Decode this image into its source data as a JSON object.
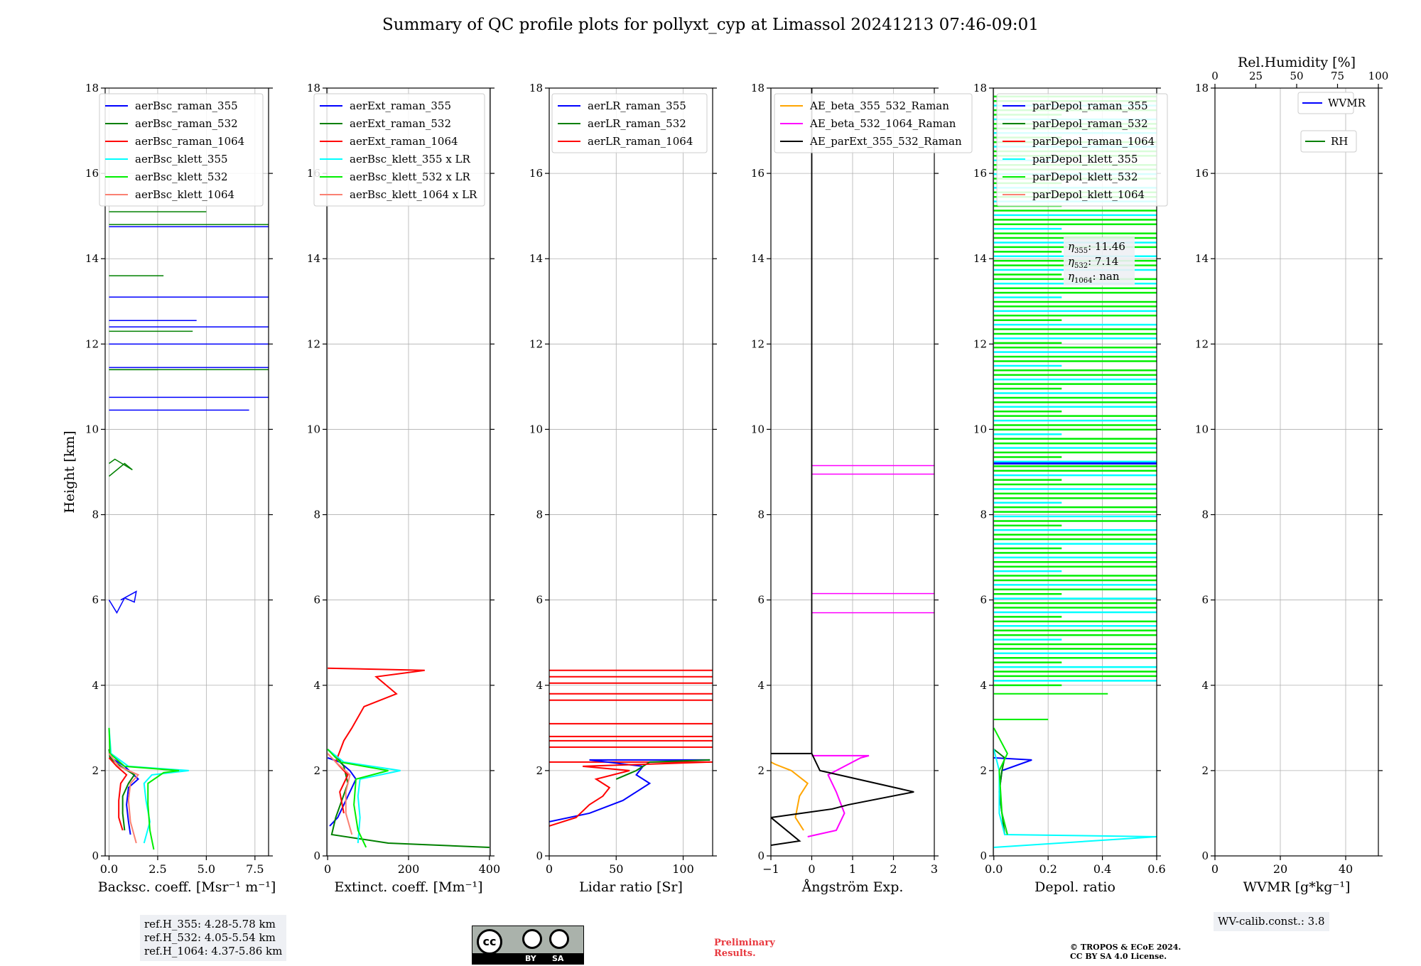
{
  "figure": {
    "title": "Summary of QC profile plots for pollyxt_cyp at Limassol 20241213 07:46-09:01"
  },
  "colors": {
    "blue": "#0000ff",
    "green": "#008000",
    "red": "#ff0000",
    "cyan": "#00ffff",
    "lime": "#00ee00",
    "salmon": "#fa8072",
    "orange": "#ffa500",
    "magenta": "#ff00ff",
    "black": "#000000"
  },
  "chart_data": [
    {
      "type": "line",
      "id": "bsc",
      "xlabel": "Backsc. coeff. [Msr⁻¹ m⁻¹]",
      "ylabel": "Height [km]",
      "xlim": [
        -0.2,
        8.2
      ],
      "ylim": [
        0,
        18
      ],
      "xticks": [
        0,
        2.5,
        5.0,
        7.5
      ],
      "xtick_labels": [
        "0.0",
        "2.5",
        "5.0",
        "7.5"
      ],
      "yticks": [
        0,
        2,
        4,
        6,
        8,
        10,
        12,
        14,
        16,
        18
      ],
      "legend_loc": "top-right",
      "series": [
        {
          "name": "aerBsc_raman_355",
          "color": "blue",
          "points": [
            [
              1.1,
              0.5
            ],
            [
              1.0,
              0.8
            ],
            [
              0.9,
              1.2
            ],
            [
              1.0,
              1.6
            ],
            [
              1.5,
              1.8
            ],
            [
              0.8,
              2.1
            ],
            [
              0.1,
              2.3
            ],
            [
              0,
              2.5
            ]
          ]
        },
        {
          "name": "aerBsc_raman_532",
          "color": "green",
          "points": [
            [
              0.8,
              0.6
            ],
            [
              0.7,
              1.0
            ],
            [
              0.7,
              1.4
            ],
            [
              1.0,
              1.7
            ],
            [
              1.3,
              1.9
            ],
            [
              0.6,
              2.1
            ],
            [
              0.05,
              2.3
            ],
            [
              0,
              2.5
            ]
          ]
        },
        {
          "name": "aerBsc_raman_1064",
          "color": "red",
          "points": [
            [
              0.7,
              0.6
            ],
            [
              0.5,
              0.9
            ],
            [
              0.5,
              1.3
            ],
            [
              0.6,
              1.7
            ],
            [
              0.9,
              1.9
            ],
            [
              0.4,
              2.1
            ],
            [
              0,
              2.3
            ]
          ]
        },
        {
          "name": "aerBsc_klett_355",
          "color": "cyan",
          "points": [
            [
              1.8,
              0.3
            ],
            [
              2.1,
              0.8
            ],
            [
              1.9,
              1.3
            ],
            [
              1.8,
              1.7
            ],
            [
              2.2,
              1.9
            ],
            [
              4.1,
              2.0
            ],
            [
              1.0,
              2.1
            ],
            [
              0.1,
              2.4
            ],
            [
              0,
              3.0
            ]
          ]
        },
        {
          "name": "aerBsc_klett_532",
          "color": "lime",
          "points": [
            [
              2.3,
              0.15
            ],
            [
              2.1,
              0.6
            ],
            [
              2.0,
              1.2
            ],
            [
              2.0,
              1.7
            ],
            [
              2.8,
              1.95
            ],
            [
              3.6,
              2.0
            ],
            [
              0.8,
              2.1
            ],
            [
              0.05,
              2.4
            ],
            [
              0,
              3.0
            ]
          ]
        },
        {
          "name": "aerBsc_klett_1064",
          "color": "salmon",
          "points": [
            [
              1.4,
              0.3
            ],
            [
              1.1,
              0.8
            ],
            [
              1.0,
              1.3
            ],
            [
              1.1,
              1.7
            ],
            [
              1.5,
              1.9
            ],
            [
              0.5,
              2.1
            ],
            [
              0,
              2.4
            ]
          ]
        }
      ],
      "annotations": [
        "ref.H_355: 4.28-5.78 km",
        "ref.H_532: 4.05-5.54 km",
        "ref.H_1064: 4.37-5.86 km"
      ]
    },
    {
      "type": "line",
      "id": "ext",
      "xlabel": "Extinct. coeff. [Mm⁻¹]",
      "xlim": [
        -2,
        402
      ],
      "ylim": [
        0,
        18
      ],
      "xticks": [
        0,
        200,
        400
      ],
      "xtick_labels": [
        "0",
        "200",
        "400"
      ],
      "yticks": [
        0,
        2,
        4,
        6,
        8,
        10,
        12,
        14,
        16,
        18
      ],
      "legend_loc": "top-right",
      "series": [
        {
          "name": "aerExt_raman_355",
          "color": "blue",
          "points": [
            [
              5,
              0.7
            ],
            [
              25,
              0.9
            ],
            [
              40,
              1.2
            ],
            [
              55,
              1.5
            ],
            [
              70,
              1.8
            ],
            [
              55,
              2.0
            ],
            [
              30,
              2.2
            ],
            [
              0,
              2.3
            ]
          ]
        },
        {
          "name": "aerExt_raman_532",
          "color": "green",
          "points": [
            [
              400,
              0.2
            ],
            [
              150,
              0.3
            ],
            [
              10,
              0.5
            ],
            [
              20,
              0.9
            ],
            [
              35,
              1.3
            ],
            [
              50,
              1.7
            ],
            [
              40,
              2.1
            ],
            [
              25,
              2.3
            ],
            [
              0,
              2.5
            ]
          ]
        },
        {
          "name": "aerExt_raman_1064",
          "color": "red",
          "points": [
            [
              40,
              1.0
            ],
            [
              30,
              1.5
            ],
            [
              50,
              1.9
            ],
            [
              20,
              2.2
            ],
            [
              40,
              2.7
            ],
            [
              60,
              3.0
            ],
            [
              90,
              3.5
            ],
            [
              170,
              3.8
            ],
            [
              120,
              4.2
            ],
            [
              240,
              4.35
            ],
            [
              0,
              4.4
            ]
          ]
        },
        {
          "name": "aerBsc_klett_355 x LR",
          "color": "cyan",
          "points": [
            [
              75,
              0.3
            ],
            [
              80,
              0.9
            ],
            [
              75,
              1.4
            ],
            [
              80,
              1.8
            ],
            [
              180,
              2.0
            ],
            [
              40,
              2.2
            ],
            [
              0,
              2.5
            ]
          ]
        },
        {
          "name": "aerBsc_klett_532 x LR",
          "color": "lime",
          "points": [
            [
              95,
              0.2
            ],
            [
              75,
              0.6
            ],
            [
              65,
              1.2
            ],
            [
              70,
              1.8
            ],
            [
              150,
              2.0
            ],
            [
              30,
              2.2
            ],
            [
              0,
              2.5
            ]
          ]
        },
        {
          "name": "aerBsc_klett_1064 x LR",
          "color": "salmon",
          "points": [
            [
              60,
              0.5
            ],
            [
              45,
              1.0
            ],
            [
              45,
              1.5
            ],
            [
              55,
              1.9
            ],
            [
              20,
              2.2
            ],
            [
              0,
              2.4
            ]
          ]
        }
      ]
    },
    {
      "type": "line",
      "id": "lr",
      "xlabel": "Lidar ratio [Sr]",
      "xlim": [
        0,
        122
      ],
      "ylim": [
        0,
        18
      ],
      "xticks": [
        0,
        50,
        100
      ],
      "xtick_labels": [
        "0",
        "50",
        "100"
      ],
      "yticks": [
        0,
        2,
        4,
        6,
        8,
        10,
        12,
        14,
        16,
        18
      ],
      "legend_loc": "top-right",
      "series": [
        {
          "name": "aerLR_raman_355",
          "color": "blue",
          "points": [
            [
              0,
              0.8
            ],
            [
              30,
              1.0
            ],
            [
              55,
              1.3
            ],
            [
              65,
              1.5
            ],
            [
              75,
              1.7
            ],
            [
              65,
              1.9
            ],
            [
              70,
              2.1
            ],
            [
              30,
              2.25
            ],
            [
              120,
              2.25
            ]
          ]
        },
        {
          "name": "aerLR_raman_532",
          "color": "green",
          "points": [
            [
              50,
              1.8
            ],
            [
              65,
              2.0
            ],
            [
              75,
              2.2
            ],
            [
              120,
              2.25
            ]
          ]
        },
        {
          "name": "aerLR_raman_1064",
          "color": "red",
          "points": [
            [
              0,
              0.7
            ],
            [
              20,
              0.9
            ],
            [
              30,
              1.2
            ],
            [
              40,
              1.4
            ],
            [
              45,
              1.6
            ],
            [
              35,
              1.8
            ],
            [
              60,
              2.0
            ],
            [
              25,
              2.1
            ],
            [
              120,
              2.2
            ]
          ]
        }
      ],
      "hlines_red_km": [
        2.2,
        2.55,
        2.7,
        2.8,
        3.1,
        3.65,
        3.8,
        4.05,
        4.2,
        4.35
      ]
    },
    {
      "type": "line",
      "id": "ae",
      "xlabel": "Ångström Exp.",
      "xlim": [
        -1,
        3
      ],
      "ylim": [
        0,
        18
      ],
      "xticks": [
        -1,
        0,
        1,
        2,
        3
      ],
      "xtick_labels": [
        "−1",
        "0",
        "1",
        "2",
        "3"
      ],
      "yticks": [
        0,
        2,
        4,
        6,
        8,
        10,
        12,
        14,
        16,
        18
      ],
      "legend_loc": "top-left",
      "series": [
        {
          "name": "AE_beta_355_532_Raman",
          "color": "orange",
          "points": [
            [
              -0.2,
              0.6
            ],
            [
              -0.4,
              0.9
            ],
            [
              -0.3,
              1.4
            ],
            [
              -0.1,
              1.7
            ],
            [
              -0.5,
              2.0
            ],
            [
              -0.9,
              2.15
            ],
            [
              -1,
              2.2
            ]
          ]
        },
        {
          "name": "AE_beta_532_1064_Raman",
          "color": "magenta",
          "points": [
            [
              -0.1,
              0.45
            ],
            [
              0.6,
              0.6
            ],
            [
              0.8,
              1.0
            ],
            [
              0.6,
              1.5
            ],
            [
              0.4,
              1.9
            ],
            [
              1.2,
              2.3
            ],
            [
              1.4,
              2.35
            ],
            [
              0,
              2.35
            ]
          ]
        },
        {
          "name": "AE_parExt_355_532_Raman",
          "color": "black",
          "points": [
            [
              -1,
              0.25
            ],
            [
              -0.3,
              0.35
            ],
            [
              -1,
              0.9
            ],
            [
              0.5,
              1.1
            ],
            [
              0.9,
              1.2
            ],
            [
              2.5,
              1.5
            ],
            [
              0.2,
              2.0
            ],
            [
              0,
              2.4
            ],
            [
              -1,
              2.4
            ]
          ]
        }
      ],
      "hlines_magenta_km": [
        5.7,
        6.15,
        8.95,
        9.15
      ],
      "vline_black_x": 0
    },
    {
      "type": "line",
      "id": "depol",
      "xlabel": "Depol. ratio",
      "xlim": [
        -0.002,
        0.6
      ],
      "ylim": [
        0,
        18
      ],
      "xticks": [
        0,
        0.2,
        0.4,
        0.6
      ],
      "xtick_labels": [
        "0.0",
        "0.2",
        "0.4",
        "0.6"
      ],
      "yticks": [
        0,
        2,
        4,
        6,
        8,
        10,
        12,
        14,
        16,
        18
      ],
      "legend_loc": "top-left",
      "series": [
        {
          "name": "parDepol_raman_355",
          "color": "blue",
          "points": [
            [
              0.05,
              0.5
            ],
            [
              0.03,
              1.0
            ],
            [
              0.02,
              1.5
            ],
            [
              0.03,
              2.0
            ],
            [
              0.14,
              2.25
            ],
            [
              0,
              2.3
            ]
          ]
        },
        {
          "name": "parDepol_raman_532",
          "color": "green",
          "points": [
            [
              0.04,
              0.5
            ],
            [
              0.03,
              1.0
            ],
            [
              0.02,
              1.5
            ],
            [
              0.03,
              2.0
            ],
            [
              0.04,
              2.3
            ],
            [
              0,
              2.5
            ]
          ]
        },
        {
          "name": "parDepol_raman_1064",
          "color": "red",
          "points": []
        },
        {
          "name": "parDepol_klett_355",
          "color": "cyan",
          "points": [
            [
              0,
              0.2
            ],
            [
              0.6,
              0.45
            ],
            [
              0.04,
              0.5
            ],
            [
              0.02,
              1.0
            ],
            [
              0.02,
              2.0
            ],
            [
              0,
              2.5
            ]
          ]
        },
        {
          "name": "parDepol_klett_532",
          "color": "lime",
          "points": [
            [
              0.05,
              0.5
            ],
            [
              0.03,
              1.0
            ],
            [
              0.02,
              2.0
            ],
            [
              0.05,
              2.4
            ],
            [
              0,
              3.0
            ]
          ]
        },
        {
          "name": "parDepol_klett_1064",
          "color": "salmon",
          "points": []
        }
      ],
      "eta_labels": [
        "11.46",
        "7.14",
        "nan"
      ]
    },
    {
      "type": "line",
      "id": "wv",
      "xlabel": "WVMR [g*kg⁻¹]",
      "top_xlabel": "Rel.Humidity [%]",
      "xlim": [
        0,
        50
      ],
      "ylim": [
        0,
        18
      ],
      "xticks": [
        0,
        20,
        40
      ],
      "xtick_labels": [
        "0",
        "20",
        "40"
      ],
      "top_ticks": [
        0,
        25,
        50,
        75,
        100
      ],
      "top_tick_labels": [
        "0",
        "25",
        "50",
        "75",
        "100"
      ],
      "yticks": [
        0,
        2,
        4,
        6,
        8,
        10,
        12,
        14,
        16,
        18
      ],
      "series": [
        {
          "name": "WVMR",
          "color": "blue",
          "points": []
        },
        {
          "name": "RH",
          "color": "green",
          "points": []
        }
      ],
      "annotations": [
        "WV-calib.const.: 3.8"
      ]
    }
  ],
  "footer": {
    "preliminary": [
      "Preliminary",
      "Results."
    ],
    "copyright": [
      "© TROPOS & ECoE 2024.",
      "CC BY SA 4.0 License."
    ],
    "license_badge": {
      "cc": "cc",
      "by": "BY",
      "sa": "SA"
    }
  }
}
